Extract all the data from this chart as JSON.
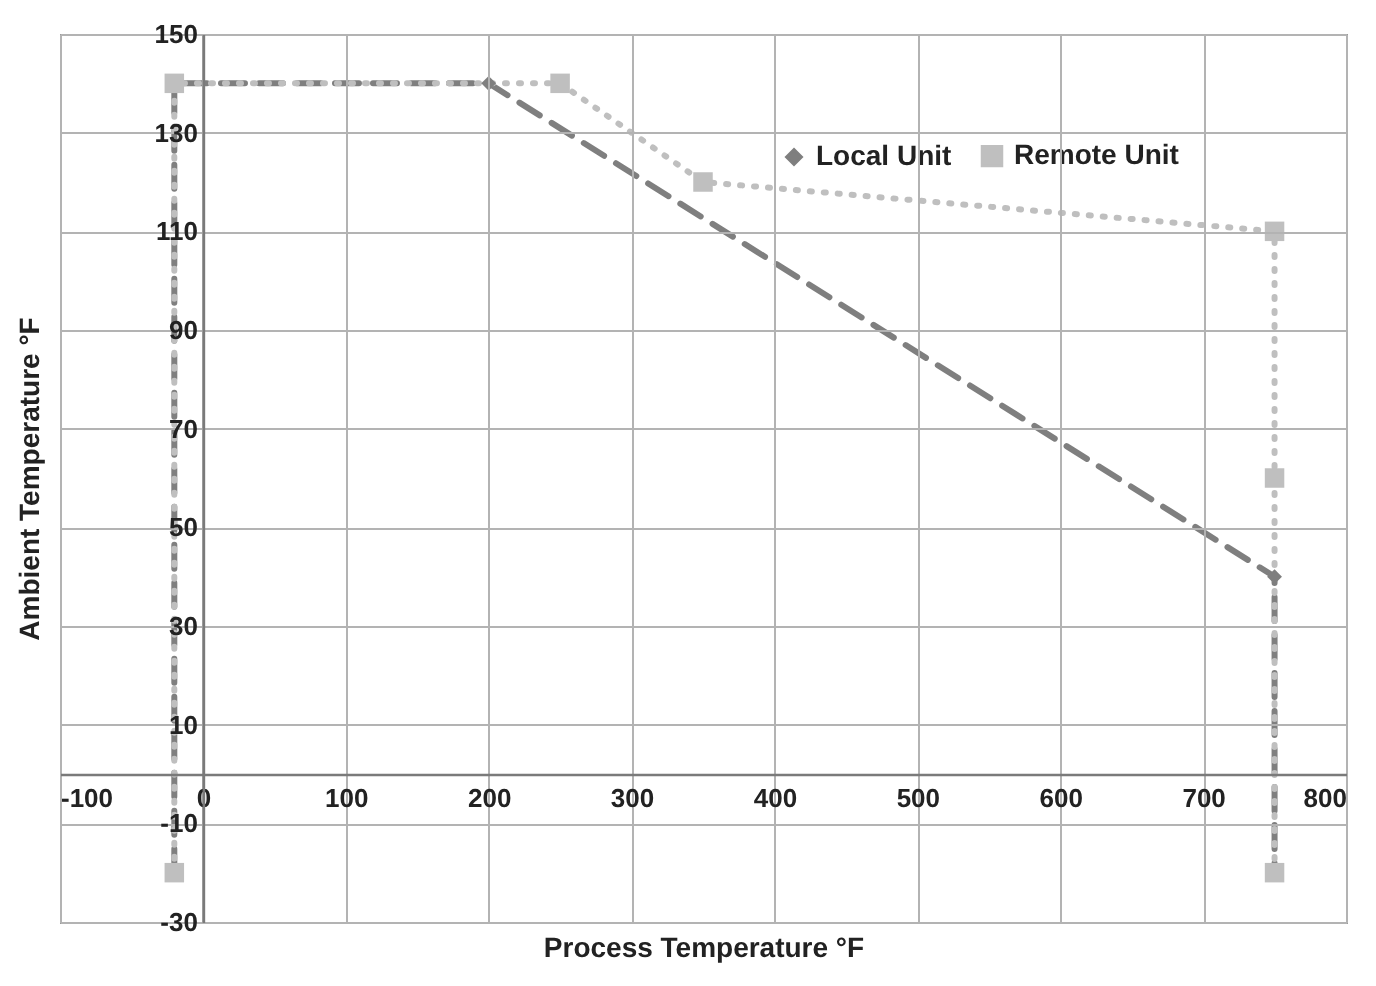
{
  "chart_data": {
    "type": "line",
    "xlabel": "Process Temperature °F",
    "ylabel": "Ambient Temperature °F",
    "xlim": [
      -100,
      800
    ],
    "xticks": [
      -100,
      0,
      100,
      200,
      300,
      400,
      500,
      600,
      700,
      800
    ],
    "ylim": [
      -30,
      150
    ],
    "yticks": [
      -30,
      -10,
      10,
      30,
      50,
      70,
      90,
      110,
      130,
      150
    ],
    "grid": true,
    "legend": "top right",
    "series": [
      {
        "name": "Local Unit",
        "color": "#7f7f7f",
        "marker": "diamond",
        "line_style": "dashed",
        "x": [
          -20,
          -20,
          200,
          750,
          750
        ],
        "values": [
          -20,
          140,
          140,
          40,
          -20
        ]
      },
      {
        "name": "Remote Unit",
        "color": "#bfbfbf",
        "marker": "square",
        "line_style": "dotted",
        "x": [
          -20,
          -20,
          250,
          350,
          750,
          750,
          750
        ],
        "values": [
          -20,
          140,
          140,
          120,
          110,
          60,
          -20
        ]
      }
    ]
  }
}
